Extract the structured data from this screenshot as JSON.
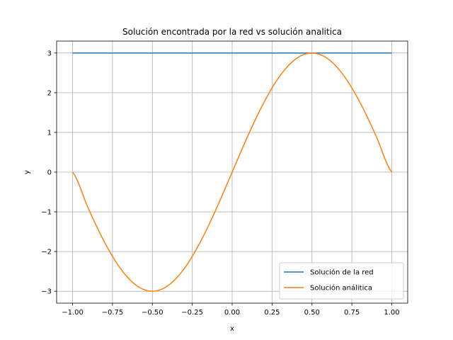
{
  "chart_data": {
    "type": "line",
    "title": "Solución encontrada por la red vs solución analitica",
    "xlabel": "x",
    "ylabel": "y",
    "xlim": [
      -1.1,
      1.1
    ],
    "ylim": [
      -3.3,
      3.3
    ],
    "grid": true,
    "legend_position": "lower-right",
    "x_ticks": [
      -1.0,
      -0.75,
      -0.5,
      -0.25,
      0.0,
      0.25,
      0.5,
      0.75,
      1.0
    ],
    "x_tick_labels": [
      "−1.00",
      "−0.75",
      "−0.50",
      "−0.25",
      "0.00",
      "0.25",
      "0.50",
      "0.75",
      "1.00"
    ],
    "y_ticks": [
      -3,
      -2,
      -1,
      0,
      1,
      2,
      3
    ],
    "y_tick_labels": [
      "−3",
      "−2",
      "−1",
      "0",
      "1",
      "2",
      "3"
    ],
    "series": [
      {
        "name": "Solución de la red",
        "color": "#1f77b4",
        "x": [
          -1.0,
          1.0
        ],
        "y": [
          3.0,
          3.0
        ]
      },
      {
        "name": "Solución análitica",
        "color": "#ff7f0e",
        "x": [
          -1.0,
          -0.9,
          -0.8,
          -0.7,
          -0.6,
          -0.5,
          -0.4,
          -0.3,
          -0.2,
          -0.1,
          0.0,
          0.1,
          0.2,
          0.3,
          0.4,
          0.5,
          0.6,
          0.7,
          0.8,
          0.9,
          1.0
        ],
        "y": [
          0.0,
          -0.927,
          -1.763,
          -2.427,
          -2.853,
          -3.0,
          -2.853,
          -2.427,
          -1.763,
          -0.927,
          0.0,
          0.927,
          1.763,
          2.427,
          2.853,
          3.0,
          2.853,
          2.427,
          1.763,
          0.927,
          0.0
        ]
      }
    ]
  }
}
